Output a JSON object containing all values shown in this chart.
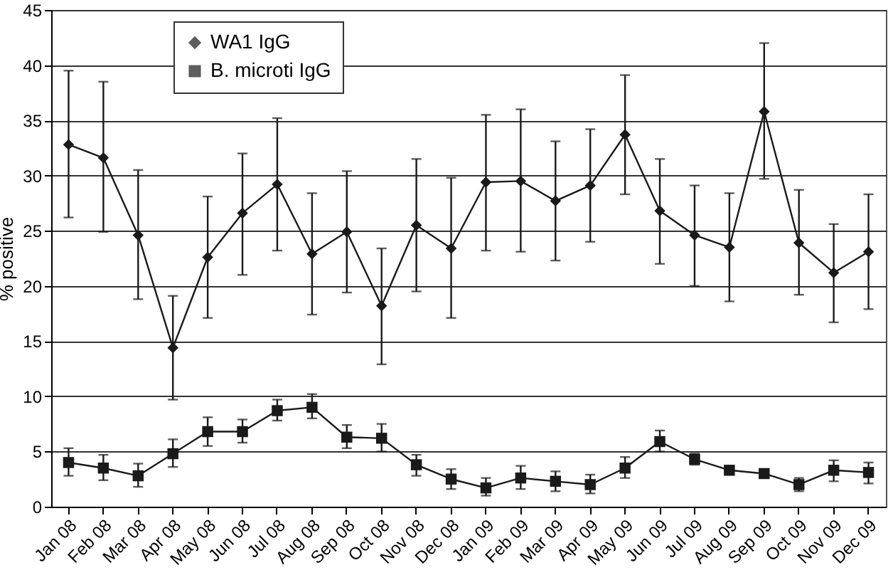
{
  "chart_data": {
    "type": "line",
    "ylabel": "% positive",
    "categories": [
      "Jan 08",
      "Feb 08",
      "Mar 08",
      "Apr 08",
      "May 08",
      "Jun 08",
      "Jul 08",
      "Aug 08",
      "Sep 08",
      "Oct 08",
      "Nov 08",
      "Dec 08",
      "Jan 09",
      "Feb 09",
      "Mar 09",
      "Apr 09",
      "May 09",
      "Jun 09",
      "Jul 09",
      "Aug 09",
      "Sep 09",
      "Oct 09",
      "Nov 09",
      "Dec 09"
    ],
    "series": [
      {
        "name": "WA1 IgG",
        "color": "#1a1a1a",
        "marker": "diamond",
        "values": [
          32.8,
          31.6,
          24.6,
          14.4,
          22.6,
          26.6,
          29.2,
          22.9,
          24.9,
          18.2,
          25.5,
          23.4,
          29.4,
          29.5,
          27.7,
          29.1,
          33.7,
          26.8,
          24.6,
          23.5,
          35.8,
          23.9,
          21.2,
          23.1
        ],
        "errors": [
          [
            26.2,
            39.5
          ],
          [
            24.9,
            38.5
          ],
          [
            18.8,
            30.5
          ],
          [
            9.7,
            19.1
          ],
          [
            17.1,
            28.1
          ],
          [
            21.0,
            32.0
          ],
          [
            23.2,
            35.2
          ],
          [
            17.4,
            28.4
          ],
          [
            19.4,
            30.4
          ],
          [
            12.9,
            23.4
          ],
          [
            19.5,
            31.5
          ],
          [
            17.1,
            29.8
          ],
          [
            23.2,
            35.5
          ],
          [
            23.1,
            36.0
          ],
          [
            22.3,
            33.1
          ],
          [
            24.0,
            34.2
          ],
          [
            28.3,
            39.1
          ],
          [
            22.0,
            31.5
          ],
          [
            20.0,
            29.1
          ],
          [
            18.6,
            28.4
          ],
          [
            29.7,
            42.0
          ],
          [
            19.2,
            28.7
          ],
          [
            16.7,
            25.6
          ],
          [
            17.9,
            28.3
          ]
        ]
      },
      {
        "name": "B. microti IgG",
        "color": "#1a1a1a",
        "marker": "square",
        "values": [
          4.0,
          3.5,
          2.8,
          4.8,
          6.8,
          6.8,
          8.7,
          9.0,
          6.3,
          6.2,
          3.8,
          2.5,
          1.7,
          2.6,
          2.3,
          2.0,
          3.5,
          5.9,
          4.3,
          3.3,
          3.0,
          2.0,
          3.3,
          3.1
        ],
        "errors": [
          [
            2.8,
            5.3
          ],
          [
            2.4,
            4.7
          ],
          [
            1.8,
            3.9
          ],
          [
            3.6,
            6.1
          ],
          [
            5.5,
            8.1
          ],
          [
            5.8,
            7.9
          ],
          [
            7.8,
            9.7
          ],
          [
            8.0,
            10.2
          ],
          [
            5.3,
            7.4
          ],
          [
            5.0,
            7.5
          ],
          [
            2.8,
            4.7
          ],
          [
            1.6,
            3.4
          ],
          [
            1.0,
            2.6
          ],
          [
            1.6,
            3.7
          ],
          [
            1.4,
            3.2
          ],
          [
            1.2,
            2.9
          ],
          [
            2.6,
            4.5
          ],
          [
            5.0,
            6.9
          ],
          [
            3.8,
            4.8
          ],
          [
            3.0,
            3.6
          ],
          [
            2.6,
            3.4
          ],
          [
            1.4,
            2.6
          ],
          [
            2.3,
            4.2
          ],
          [
            2.1,
            4.0
          ]
        ]
      }
    ],
    "ylim": [
      0,
      45
    ],
    "yticks": [
      0,
      5,
      10,
      15,
      20,
      25,
      30,
      35,
      40,
      45
    ],
    "grid": "y",
    "legend": "top left",
    "line_style": "solid"
  }
}
